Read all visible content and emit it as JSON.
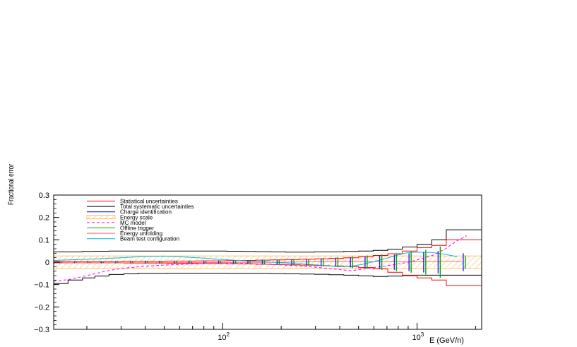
{
  "chart_data": {
    "type": "line",
    "xscale": "log",
    "xlim": [
      13.5,
      2150
    ],
    "ylim": [
      -0.3,
      0.3
    ],
    "xlabel": "E (GeV/n)",
    "ylabel": "Fractional error",
    "y_ticks": [
      "0.3",
      "0.2",
      "0.1",
      "0",
      "−0.1",
      "−0.2",
      "−0.3"
    ],
    "y_tick_values": [
      0.3,
      0.2,
      0.1,
      0,
      -0.1,
      -0.2,
      -0.3
    ],
    "x_ticks": [
      {
        "value": 100,
        "base": "10",
        "exp": "2"
      },
      {
        "value": 1000,
        "base": "10",
        "exp": "3"
      }
    ],
    "legend": [
      {
        "label": "Statistical uncertainties",
        "color": "#ff0000",
        "style": "solid"
      },
      {
        "label": "Total systematic uncertainties",
        "color": "#000000",
        "style": "solid"
      },
      {
        "label": "Charge identification",
        "color": "#0000ff",
        "style": "solid"
      },
      {
        "label": "Energy scale",
        "color": "#ff9900",
        "style": "hatch"
      },
      {
        "label": "MC model",
        "color": "#ff00ff",
        "style": "dashed"
      },
      {
        "label": "Offline trigger",
        "color": "#00aa00",
        "style": "solid"
      },
      {
        "label": "Energy unfolding",
        "color": "#ff6666",
        "style": "solid"
      },
      {
        "label": "Beam test configuration",
        "color": "#00bbdd",
        "style": "solid"
      }
    ],
    "bin_edges": [
      13.5,
      16,
      19,
      22,
      26,
      31,
      37,
      44,
      52,
      62,
      74,
      88,
      105,
      125,
      148,
      176,
      210,
      250,
      297,
      353,
      420,
      500,
      594,
      707,
      841,
      1000,
      1190,
      1414,
      2150
    ],
    "total_systematic_upper": [
      0.046,
      0.046,
      0.048,
      0.049,
      0.05,
      0.05,
      0.05,
      0.05,
      0.05,
      0.05,
      0.05,
      0.05,
      0.049,
      0.048,
      0.047,
      0.046,
      0.045,
      0.045,
      0.046,
      0.046,
      0.048,
      0.05,
      0.053,
      0.058,
      0.068,
      0.08,
      0.1,
      0.145
    ],
    "total_systematic_lower": [
      -0.095,
      -0.08,
      -0.07,
      -0.062,
      -0.055,
      -0.052,
      -0.05,
      -0.05,
      -0.049,
      -0.049,
      -0.049,
      -0.049,
      -0.05,
      -0.05,
      -0.05,
      -0.051,
      -0.052,
      -0.053,
      -0.054,
      -0.056,
      -0.058,
      -0.061,
      -0.064,
      -0.062,
      -0.06,
      -0.058,
      -0.058,
      -0.058
    ],
    "statistical_upper": [
      0.003,
      0.003,
      0.003,
      0.003,
      0.003,
      0.004,
      0.004,
      0.004,
      0.005,
      0.005,
      0.006,
      0.006,
      0.007,
      0.008,
      0.009,
      0.01,
      0.012,
      0.013,
      0.015,
      0.017,
      0.02,
      0.024,
      0.03,
      0.038,
      0.05,
      0.065,
      0.075,
      0.1
    ],
    "statistical_lower": [
      -0.003,
      -0.003,
      -0.003,
      -0.003,
      -0.003,
      -0.004,
      -0.004,
      -0.004,
      -0.005,
      -0.005,
      -0.006,
      -0.006,
      -0.007,
      -0.008,
      -0.009,
      -0.01,
      -0.012,
      -0.013,
      -0.015,
      -0.017,
      -0.02,
      -0.024,
      -0.03,
      -0.045,
      -0.058,
      -0.07,
      -0.08,
      -0.105
    ],
    "energy_scale_band": [
      -0.028,
      0.028
    ],
    "mc_model": {
      "x": [
        13.5,
        16,
        20,
        25,
        30,
        40,
        50,
        60,
        80,
        100,
        130,
        160,
        200,
        260,
        320,
        400,
        460,
        520,
        600,
        700,
        800,
        900,
        1000,
        1200,
        1400,
        1600,
        1800
      ],
      "y": [
        -0.085,
        -0.078,
        -0.06,
        -0.04,
        -0.028,
        -0.018,
        -0.013,
        -0.01,
        -0.006,
        -0.005,
        -0.006,
        -0.008,
        -0.012,
        -0.018,
        -0.025,
        -0.033,
        -0.038,
        -0.032,
        -0.024,
        -0.016,
        -0.008,
        0.0,
        0.01,
        0.03,
        0.06,
        0.095,
        0.118
      ]
    },
    "beam_test_configuration": {
      "x": [
        13.5,
        16,
        20,
        25,
        30,
        40,
        50,
        60,
        80,
        100,
        130,
        160,
        200,
        260,
        320,
        400,
        460,
        520,
        600,
        700,
        800,
        900,
        1000,
        1200,
        1400,
        1600
      ],
      "y": [
        0.008,
        0.01,
        0.013,
        0.017,
        0.02,
        0.026,
        0.027,
        0.024,
        0.018,
        0.012,
        0.006,
        0.002,
        -0.002,
        -0.008,
        -0.014,
        -0.02,
        -0.018,
        -0.01,
        0.003,
        0.018,
        0.033,
        0.043,
        0.045,
        0.043,
        0.035,
        0.025
      ]
    },
    "energy_unfolding": {
      "x": [
        13.5,
        20,
        30,
        50,
        80,
        130,
        200,
        300,
        450,
        600,
        800,
        1000,
        1300,
        1700
      ],
      "y": [
        -0.004,
        -0.003,
        -0.003,
        -0.002,
        -0.002,
        -0.001,
        0.0,
        0.002,
        0.004,
        0.003,
        0.002,
        0.003,
        0.004,
        0.004
      ]
    },
    "error_bars": {
      "x": [
        14.7,
        17.5,
        20.5,
        24,
        28.5,
        34,
        40.5,
        48,
        57,
        68,
        81,
        96.5,
        115,
        136.5,
        162,
        193,
        229.5,
        273.5,
        325,
        386.5,
        460,
        547,
        650.5,
        774,
        921,
        1095,
        1300,
        1750
      ],
      "charge_identification": [
        0.004,
        0.004,
        0.004,
        0.005,
        0.005,
        0.005,
        0.006,
        0.006,
        0.006,
        0.007,
        0.007,
        0.008,
        0.008,
        0.009,
        0.01,
        0.011,
        0.013,
        0.015,
        0.017,
        0.02,
        0.023,
        0.026,
        0.03,
        0.034,
        0.04,
        0.046,
        0.05,
        0.04
      ],
      "offline_trigger": [
        0.003,
        0.003,
        0.003,
        0.004,
        0.004,
        0.004,
        0.005,
        0.005,
        0.005,
        0.006,
        0.006,
        0.007,
        0.008,
        0.009,
        0.01,
        0.012,
        0.014,
        0.016,
        0.019,
        0.022,
        0.026,
        0.03,
        0.035,
        0.04,
        0.047,
        0.055,
        0.07,
        0.03
      ]
    }
  }
}
